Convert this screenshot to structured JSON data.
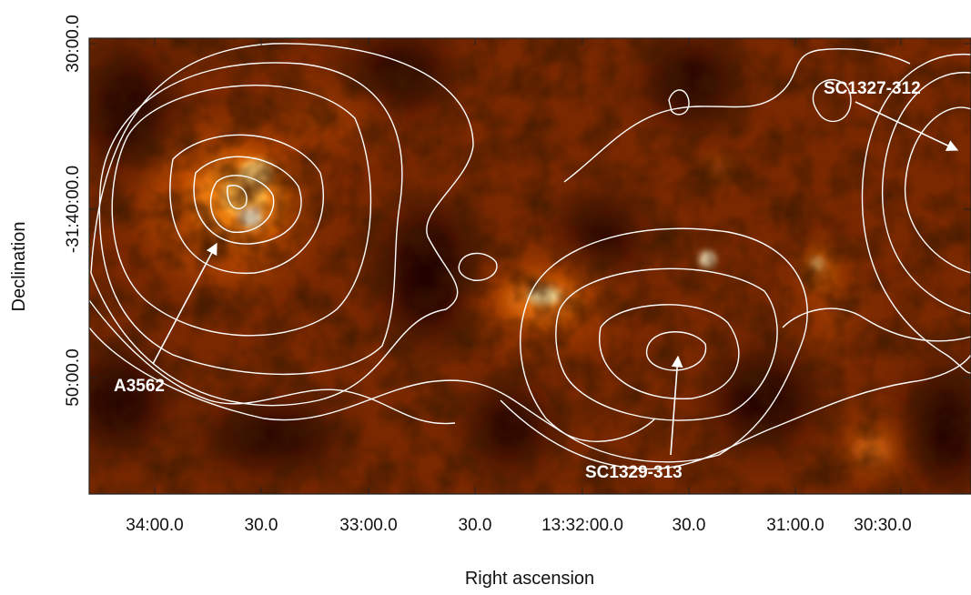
{
  "figure": {
    "x_axis_title": "Right ascension",
    "y_axis_title": "Declination",
    "x_ticks": [
      "34:00.0",
      "30.0",
      "33:00.0",
      "30.0",
      "13:32:00.0",
      "30.0",
      "31:00.0",
      "30:30.0"
    ],
    "y_ticks": [
      "30:00.0",
      "-31:40:00.0",
      "50:00.0"
    ],
    "annotations": [
      {
        "label": "A3562"
      },
      {
        "label": "SC1329-313"
      },
      {
        "label": "SC1327-312"
      }
    ],
    "colormap": "hot (black-orange-white)",
    "contour_color": "#ffffff"
  }
}
